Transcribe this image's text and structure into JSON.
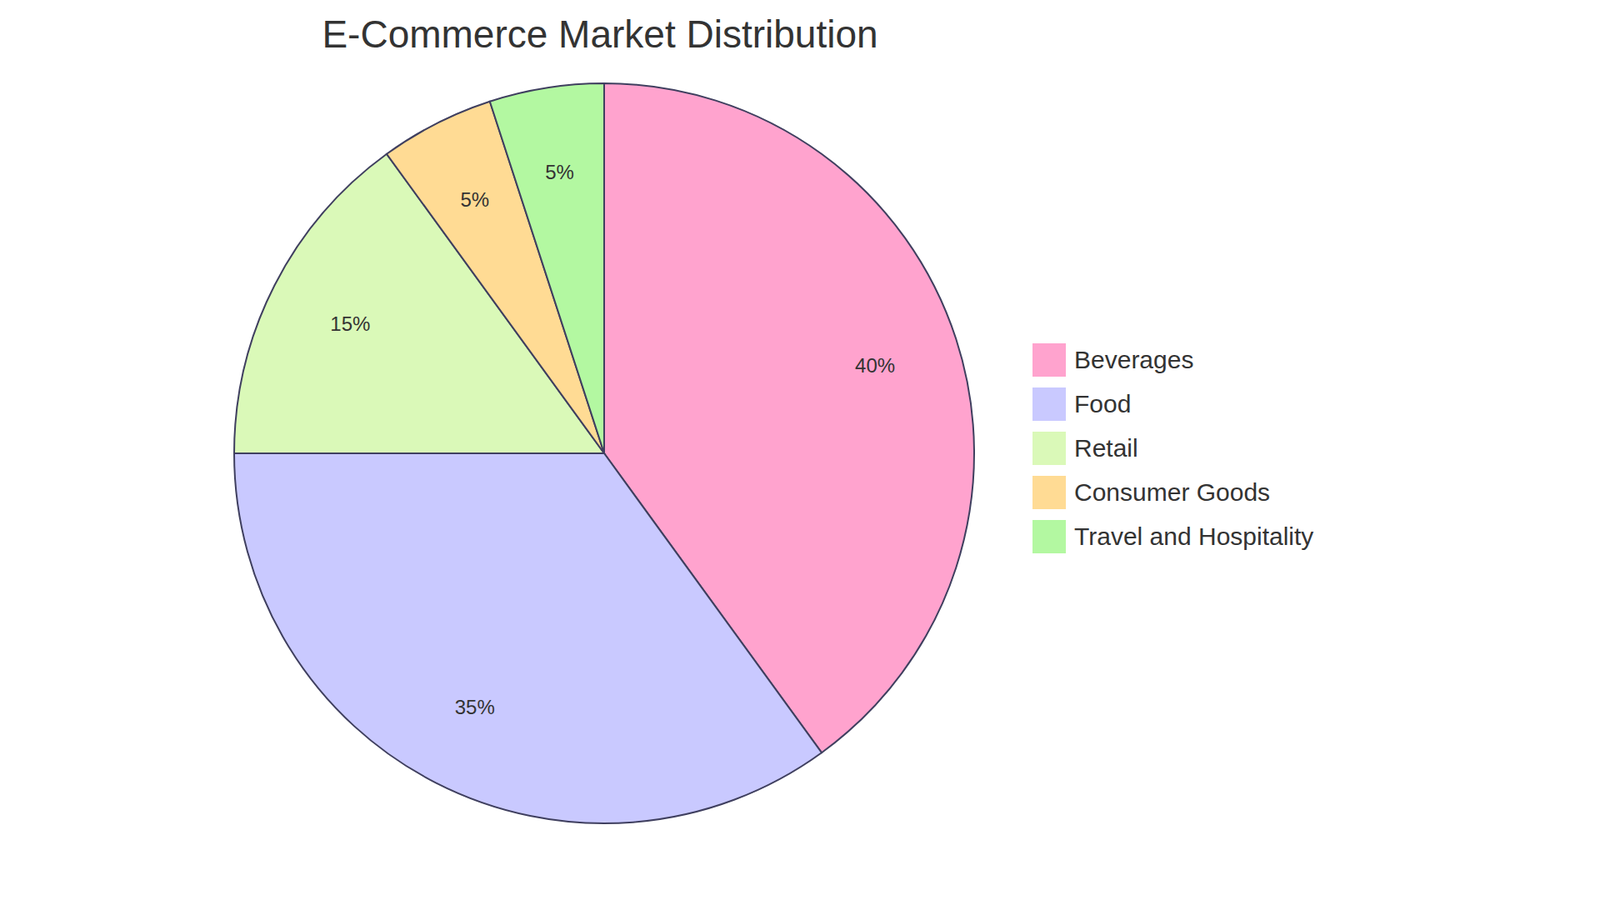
{
  "chart_data": {
    "type": "pie",
    "title": "E-Commerce Market Distribution",
    "categories": [
      "Beverages",
      "Food",
      "Retail",
      "Consumer Goods",
      "Travel and Hospitality"
    ],
    "values": [
      40,
      35,
      15,
      5,
      5
    ],
    "value_labels": [
      "40%",
      "35%",
      "15%",
      "5%",
      "5%"
    ],
    "colors": [
      "#ffa3ce",
      "#c9c9ff",
      "#daf9b8",
      "#ffdb94",
      "#b3f8a1"
    ],
    "data_labels": true,
    "legend": "right"
  }
}
